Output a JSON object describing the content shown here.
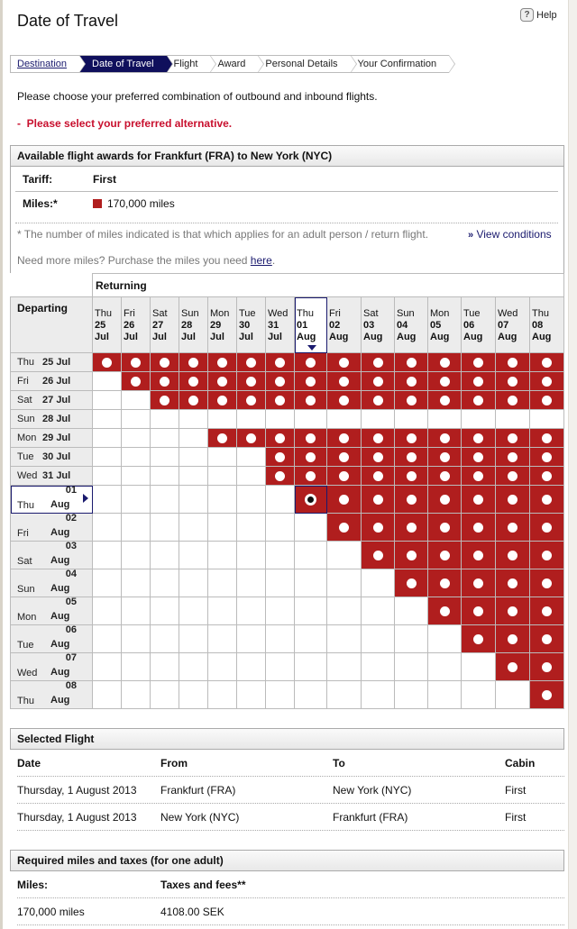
{
  "page": {
    "title": "Date of Travel",
    "help": "Help",
    "help_icon": "question-bubble-icon"
  },
  "breadcrumb": [
    {
      "label": "Destination",
      "state": "link"
    },
    {
      "label": "Date of Travel",
      "state": "active"
    },
    {
      "label": "Flight"
    },
    {
      "label": "Award"
    },
    {
      "label": "Personal Details"
    },
    {
      "label": "Your Confirmation"
    }
  ],
  "intro": "Please choose your preferred combination of outbound and inbound flights.",
  "error": "Please select your preferred alternative.",
  "error_bullet": "-",
  "awards": {
    "title": "Available flight awards for Frankfurt (FRA) to New York (NYC)",
    "tariff_label": "Tariff:",
    "tariff_value": "First",
    "miles_label": "Miles:*",
    "miles_value": "170,000 miles",
    "miles_color": "#b01e1e",
    "footnote": "* The number of miles indicated is that which applies for an adult person / return flight.",
    "view_conditions": "View conditions",
    "view_conditions_prefix": "»",
    "need_more": "Need more miles? Purchase the miles you need ",
    "here": "here",
    "need_more_end": "."
  },
  "grid": {
    "returning_label": "Returning",
    "departing_label": "Departing",
    "columns": [
      [
        "Thu",
        "25",
        "Jul"
      ],
      [
        "Fri",
        "26",
        "Jul"
      ],
      [
        "Sat",
        "27",
        "Jul"
      ],
      [
        "Sun",
        "28",
        "Jul"
      ],
      [
        "Mon",
        "29",
        "Jul"
      ],
      [
        "Tue",
        "30",
        "Jul"
      ],
      [
        "Wed",
        "31",
        "Jul"
      ],
      [
        "Thu",
        "01",
        "Aug"
      ],
      [
        "Fri",
        "02",
        "Aug"
      ],
      [
        "Sat",
        "03",
        "Aug"
      ],
      [
        "Sun",
        "04",
        "Aug"
      ],
      [
        "Mon",
        "05",
        "Aug"
      ],
      [
        "Tue",
        "06",
        "Aug"
      ],
      [
        "Wed",
        "07",
        "Aug"
      ],
      [
        "Thu",
        "08",
        "Aug"
      ]
    ],
    "rows": [
      [
        "Thu",
        "25",
        "Jul"
      ],
      [
        "Fri",
        "26",
        "Jul"
      ],
      [
        "Sat",
        "27",
        "Jul"
      ],
      [
        "Sun",
        "28",
        "Jul"
      ],
      [
        "Mon",
        "29",
        "Jul"
      ],
      [
        "Tue",
        "30",
        "Jul"
      ],
      [
        "Wed",
        "31",
        "Jul"
      ],
      [
        "Thu",
        "01",
        "Aug"
      ],
      [
        "Fri",
        "02",
        "Aug"
      ],
      [
        "Sat",
        "03",
        "Aug"
      ],
      [
        "Sun",
        "04",
        "Aug"
      ],
      [
        "Mon",
        "05",
        "Aug"
      ],
      [
        "Tue",
        "06",
        "Aug"
      ],
      [
        "Wed",
        "07",
        "Aug"
      ],
      [
        "Thu",
        "08",
        "Aug"
      ]
    ],
    "available_from_column": [
      0,
      1,
      2,
      null,
      4,
      6,
      6,
      7,
      8,
      9,
      10,
      11,
      12,
      13,
      14
    ],
    "selected": {
      "row": 7,
      "column": 7
    },
    "available_color": "#b01e1e",
    "selected_color": "#1a1a6e"
  },
  "selected_flight": {
    "title": "Selected Flight",
    "headers": [
      "Date",
      "From",
      "To",
      "Cabin"
    ],
    "rows": [
      [
        "Thursday, 1 August 2013",
        "Frankfurt (FRA)",
        "New York (NYC)",
        "First"
      ],
      [
        "Thursday, 1 August 2013",
        "New York (NYC)",
        "Frankfurt (FRA)",
        "First"
      ]
    ]
  },
  "required": {
    "title": "Required miles and taxes (for one adult)",
    "headers": [
      "Miles:",
      "Taxes and fees**"
    ],
    "values": [
      "170,000 miles",
      "4108.00 SEK"
    ]
  }
}
